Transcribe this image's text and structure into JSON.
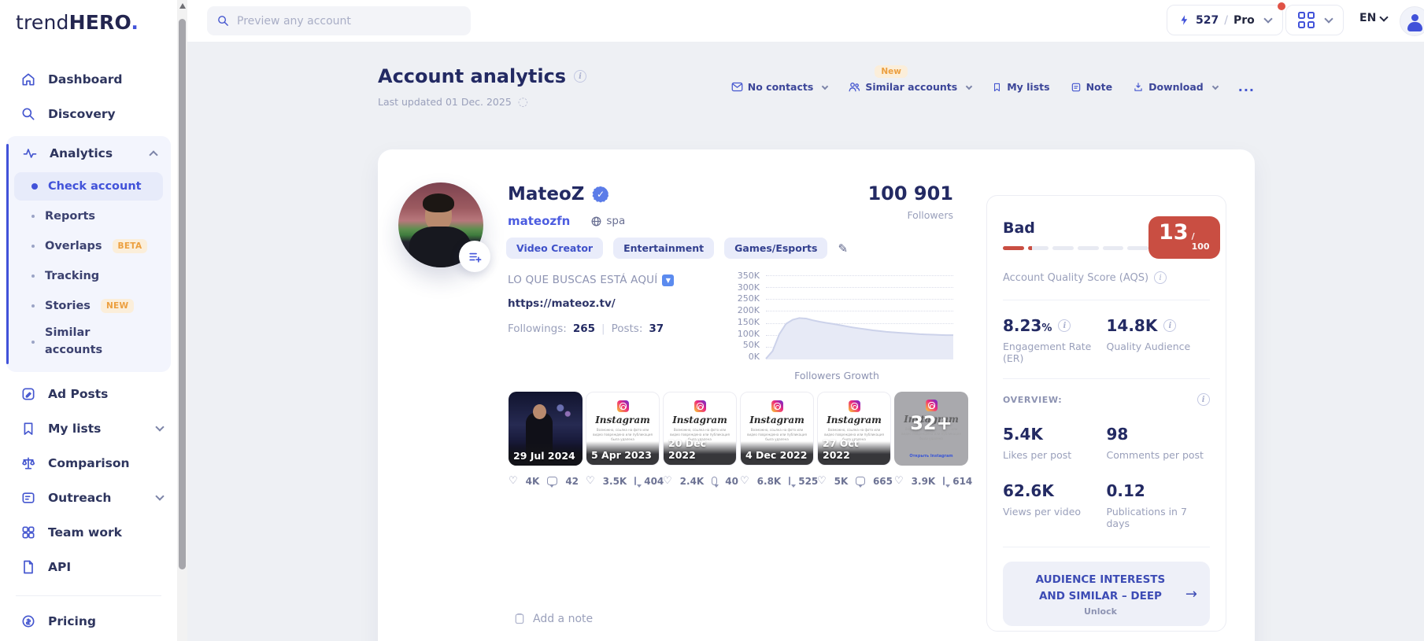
{
  "topbar": {
    "search_placeholder": "Preview any account",
    "credits": "527",
    "plan": "Pro",
    "language": "EN"
  },
  "sidebar": {
    "logo_trend": "trend",
    "logo_hero": "HERO",
    "logo_dot": ".",
    "dashboard": "Dashboard",
    "discovery": "Discovery",
    "analytics": "Analytics",
    "check_account": "Check account",
    "reports": "Reports",
    "overlaps": "Overlaps",
    "overlaps_badge": "BETA",
    "tracking": "Tracking",
    "stories": "Stories",
    "stories_badge": "NEW",
    "similar_accounts": "Similar accounts",
    "ad_posts": "Ad Posts",
    "my_lists": "My lists",
    "comparison": "Comparison",
    "outreach": "Outreach",
    "team_work": "Team work",
    "api": "API",
    "pricing": "Pricing"
  },
  "header": {
    "title": "Account analytics",
    "last_updated": "Last updated 01 Dec. 2025",
    "actions": {
      "new_badge": "New",
      "no_contacts": "No contacts",
      "similar_accounts": "Similar accounts",
      "my_lists": "My lists",
      "note": "Note",
      "download": "Download",
      "more": "..."
    }
  },
  "profile": {
    "name": "MateoZ",
    "username": "mateozfn",
    "language": "spa",
    "tags": [
      "Video Creator",
      "Entertainment",
      "Games/Esports"
    ],
    "bio": "LO QUE BUSCAS ESTÁ AQUÍ",
    "link": "https://mateoz.tv/",
    "followings_label": "Followings:",
    "followings": "265",
    "posts_label": "Posts:",
    "posts_count": "37"
  },
  "chart_data": {
    "type": "area",
    "title": "Followers Growth",
    "headline_value": "100 901",
    "headline_label": "Followers",
    "unit": "K followers",
    "values": [
      3,
      35,
      105,
      148,
      165,
      172,
      170,
      163,
      157,
      152,
      148,
      143,
      138,
      133,
      129,
      125,
      121,
      118,
      115,
      113,
      111,
      109,
      107,
      105,
      104,
      103,
      102,
      101,
      101
    ],
    "ylim": [
      0,
      350
    ],
    "yticks": [
      "350K",
      "300K",
      "250K",
      "200K",
      "150K",
      "100K",
      "50K",
      "0K"
    ],
    "grid": "dotted-horizontal",
    "area_color": "#e7eaf6",
    "line_color": "#ccd2ea"
  },
  "instagram_placeholder": {
    "brand": "Instagram",
    "caption": "Возможно, ссылка на фото или видео повреждена или публикация была удалена",
    "open_link": "Открыть Instagram"
  },
  "posts": [
    {
      "date": "29 Jul 2024",
      "likes": "4K",
      "comments": "42"
    },
    {
      "date": "5 Apr 2023",
      "likes": "3.5K",
      "comments": "404"
    },
    {
      "date": "20 Dec 2022",
      "likes": "2.4K",
      "comments": "40"
    },
    {
      "date": "4 Dec 2022",
      "likes": "6.8K",
      "comments": "525"
    },
    {
      "date": "27 Oct 2022",
      "likes": "5K",
      "comments": "665"
    },
    {
      "date": "",
      "likes": "3.9K",
      "comments": "614",
      "overlay": "32+"
    }
  ],
  "aqs": {
    "rating": "Bad",
    "score": "13",
    "denominator": "/ 100",
    "label": "Account Quality Score (AQS)",
    "score_color": "#c94e42",
    "segments_total": 6,
    "segments_filled": 1
  },
  "metrics": {
    "er_value": "8.23",
    "er_unit": "%",
    "er_label": "Engagement Rate (ER)",
    "qa_value": "14.8K",
    "qa_label": "Quality Audience",
    "overview_label": "OVERVIEW:",
    "likes": {
      "value": "5.4K",
      "label": "Likes per post"
    },
    "comments": {
      "value": "98",
      "label": "Comments per post"
    },
    "views": {
      "value": "62.6K",
      "label": "Views per video"
    },
    "pubs": {
      "value": "0.12",
      "label": "Publications in 7 days"
    }
  },
  "unlock": {
    "line1": "AUDIENCE INTERESTS",
    "line2": "AND SIMILAR – DEEP",
    "action": "Unlock"
  },
  "note_footer": {
    "label": "Add a note"
  }
}
